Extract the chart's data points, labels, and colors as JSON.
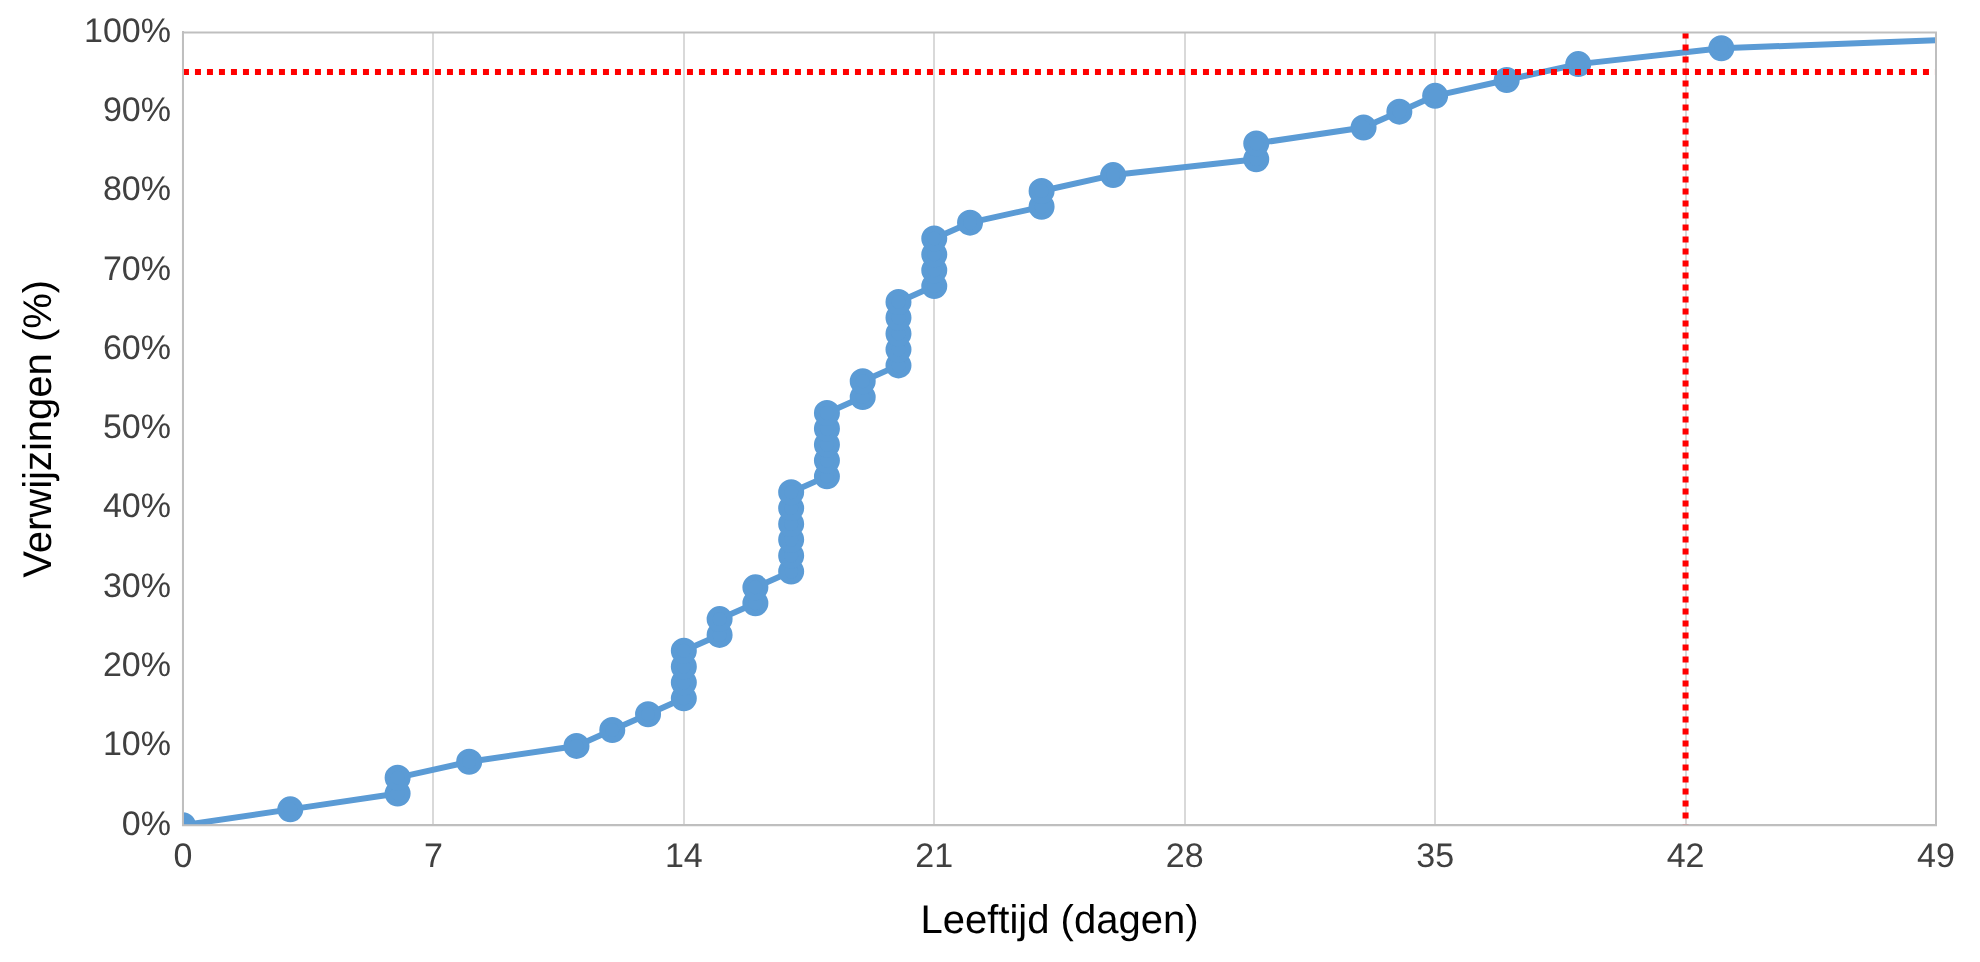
{
  "chart_data": {
    "type": "line",
    "xlabel": "Leeftijd (dagen)",
    "ylabel": "Verwijzingen (%)",
    "xlim": [
      0,
      49
    ],
    "xticks": [
      0,
      7,
      14,
      21,
      28,
      35,
      42,
      49
    ],
    "ylim": [
      0,
      100
    ],
    "yticks": [
      {
        "value": 0,
        "label": "0%"
      },
      {
        "value": 10,
        "label": "10%"
      },
      {
        "value": 20,
        "label": "20%"
      },
      {
        "value": 30,
        "label": "30%"
      },
      {
        "value": 40,
        "label": "40%"
      },
      {
        "value": 50,
        "label": "50%"
      },
      {
        "value": 60,
        "label": "60%"
      },
      {
        "value": 70,
        "label": "70%"
      },
      {
        "value": 80,
        "label": "80%"
      },
      {
        "value": 90,
        "label": "90%"
      },
      {
        "value": 100,
        "label": "100%"
      }
    ],
    "grid": "x",
    "marker": "circle",
    "line_style": "solid",
    "legend": false,
    "series": [
      {
        "color": "#5b9bd5",
        "x": [
          0,
          3,
          6,
          6,
          8,
          11,
          12,
          13,
          14,
          14,
          14,
          14,
          15,
          15,
          16,
          16,
          17,
          17,
          17,
          17,
          17,
          17,
          18,
          18,
          18,
          18,
          18,
          19,
          19,
          20,
          20,
          20,
          20,
          20,
          21,
          21,
          21,
          21,
          22,
          24,
          24,
          26,
          30,
          30,
          33,
          34,
          35,
          37,
          39,
          43
        ],
        "values": [
          0,
          2,
          4,
          6,
          8,
          10,
          12,
          14,
          16,
          18,
          20,
          22,
          24,
          26,
          28,
          30,
          32,
          34,
          36,
          38,
          40,
          42,
          44,
          46,
          48,
          50,
          52,
          54,
          56,
          58,
          60,
          62,
          64,
          66,
          68,
          70,
          72,
          74,
          76,
          78,
          80,
          82,
          84,
          86,
          88,
          90,
          92,
          94,
          96,
          98
        ]
      },
      {
        "color": "#5b9bd5",
        "marker": "none",
        "x": [
          43,
          49
        ],
        "values": [
          98,
          99
        ]
      }
    ],
    "ref_lines": [
      {
        "axis": "y",
        "value": 95,
        "color": "#ff0000",
        "line_style": "dotted"
      },
      {
        "axis": "x",
        "value": 42,
        "color": "#ff0000",
        "line_style": "dotted"
      }
    ]
  }
}
